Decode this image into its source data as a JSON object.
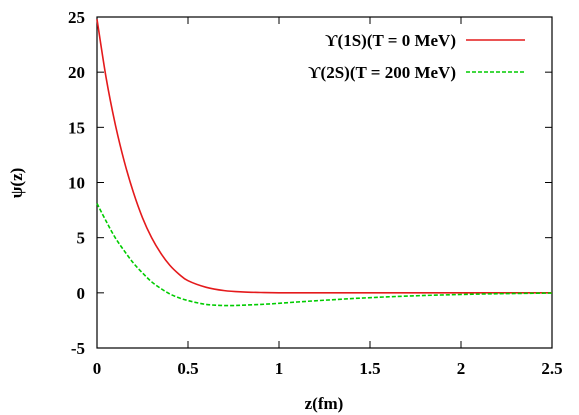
{
  "chart_data": {
    "type": "line",
    "xlabel": "z(fm)",
    "ylabel": "ψ(z)",
    "xlim": [
      0,
      2.5
    ],
    "ylim": [
      -5,
      25
    ],
    "xticks": [
      0,
      0.5,
      1,
      1.5,
      2,
      2.5
    ],
    "xtick_labels": [
      "0",
      "0.5",
      "1",
      "1.5",
      "2",
      "2.5"
    ],
    "yticks": [
      -5,
      0,
      5,
      10,
      15,
      20,
      25
    ],
    "ytick_labels": [
      "-5",
      "0",
      "5",
      "10",
      "15",
      "20",
      "25"
    ],
    "grid": false,
    "legend_position": "top-right",
    "series": [
      {
        "name": "ϒ(1S)(T = 0 MeV)",
        "color": "#e41a1c",
        "style": "solid",
        "x": [
          0,
          0.05,
          0.1,
          0.15,
          0.2,
          0.25,
          0.3,
          0.35,
          0.4,
          0.45,
          0.5,
          0.6,
          0.7,
          0.8,
          0.9,
          1.0,
          1.2,
          1.5,
          2.0,
          2.5
        ],
        "y": [
          24.8,
          19.5,
          15.3,
          11.9,
          9.1,
          6.8,
          5.0,
          3.6,
          2.5,
          1.7,
          1.1,
          0.5,
          0.2,
          0.08,
          0.03,
          0.0,
          0.0,
          0.0,
          0.0,
          0.0
        ]
      },
      {
        "name": "ϒ(2S)(T = 200 MeV)",
        "color": "#00cc00",
        "style": "dashed",
        "x": [
          0,
          0.05,
          0.1,
          0.15,
          0.2,
          0.25,
          0.3,
          0.35,
          0.4,
          0.45,
          0.5,
          0.55,
          0.6,
          0.65,
          0.7,
          0.75,
          0.8,
          0.9,
          1.0,
          1.1,
          1.2,
          1.3,
          1.4,
          1.5,
          1.6,
          1.8,
          2.0,
          2.2,
          2.5
        ],
        "y": [
          8.1,
          6.5,
          5.0,
          3.8,
          2.7,
          1.8,
          1.0,
          0.4,
          -0.1,
          -0.45,
          -0.7,
          -0.9,
          -1.05,
          -1.12,
          -1.15,
          -1.15,
          -1.12,
          -1.05,
          -0.95,
          -0.83,
          -0.72,
          -0.62,
          -0.52,
          -0.44,
          -0.36,
          -0.24,
          -0.15,
          -0.08,
          -0.02
        ]
      }
    ]
  }
}
